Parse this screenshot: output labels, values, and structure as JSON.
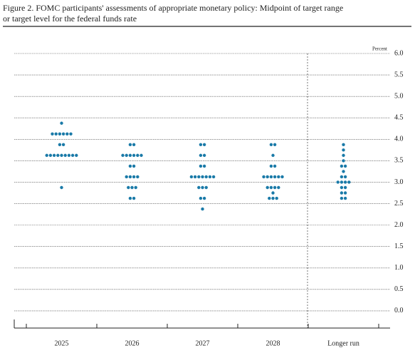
{
  "chart_data": {
    "type": "dot",
    "title_lines": [
      "Figure 2. FOMC participants' assessments of appropriate monetary policy: Midpoint of target range",
      "or target level for the federal funds rate"
    ],
    "y_label": "Percent",
    "categories": [
      "2025",
      "2026",
      "2027",
      "2028",
      "Longer run"
    ],
    "values": [
      [
        4.375,
        4.125,
        4.125,
        4.125,
        4.125,
        4.125,
        4.125,
        3.875,
        3.875,
        3.625,
        3.625,
        3.625,
        3.625,
        3.625,
        3.625,
        3.625,
        3.625,
        3.625,
        2.875
      ],
      [
        3.875,
        3.875,
        3.625,
        3.625,
        3.625,
        3.625,
        3.625,
        3.625,
        3.375,
        3.375,
        3.125,
        3.125,
        3.125,
        3.125,
        2.875,
        2.875,
        2.875,
        2.625,
        2.625
      ],
      [
        3.875,
        3.875,
        3.625,
        3.625,
        3.375,
        3.375,
        3.125,
        3.125,
        3.125,
        3.125,
        3.125,
        3.125,
        3.125,
        2.875,
        2.875,
        2.875,
        2.625,
        2.625,
        2.375
      ],
      [
        3.875,
        3.875,
        3.625,
        3.375,
        3.375,
        3.125,
        3.125,
        3.125,
        3.125,
        3.125,
        3.125,
        2.875,
        2.875,
        2.875,
        2.875,
        2.75,
        2.625,
        2.625,
        2.625
      ],
      [
        3.875,
        3.75,
        3.625,
        3.5,
        3.375,
        3.375,
        3.25,
        3.125,
        3.125,
        3.0,
        3.0,
        3.0,
        3.0,
        2.875,
        2.875,
        2.75,
        2.75,
        2.625,
        2.625
      ]
    ],
    "color": "#1a7aa8",
    "ylim": [
      -0.4,
      6.0
    ],
    "yticks": [
      {
        "value": 0,
        "label": "0.0"
      },
      {
        "value": 0.5,
        "label": "0.5"
      },
      {
        "value": 1,
        "label": "1.0"
      },
      {
        "value": 1.5,
        "label": "1.5"
      },
      {
        "value": 2,
        "label": "2.0"
      },
      {
        "value": 2.5,
        "label": "2.5"
      },
      {
        "value": 3,
        "label": "3.0"
      },
      {
        "value": 3.5,
        "label": "3.5"
      },
      {
        "value": 4,
        "label": "4.0"
      },
      {
        "value": 4.5,
        "label": "4.5"
      },
      {
        "value": 5,
        "label": "5.0"
      },
      {
        "value": 5.5,
        "label": "5.5"
      },
      {
        "value": 6,
        "label": "6.0"
      }
    ],
    "grid": true
  }
}
